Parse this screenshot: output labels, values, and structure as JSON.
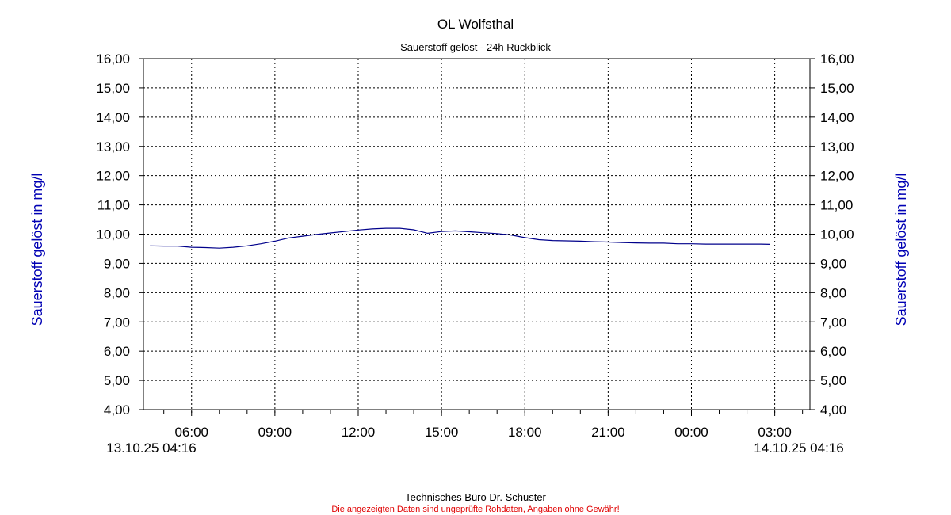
{
  "chart_data": {
    "type": "line",
    "title": "OL Wolfsthal",
    "subtitle": "Sauerstoff gelöst - 24h Rückblick",
    "ylabel_left": "Sauerstoff gelöst in mg/l",
    "ylabel_right": "Sauerstoff gelöst in mg/l",
    "ylim": [
      4,
      16
    ],
    "yticks": [
      "4,00",
      "5,00",
      "6,00",
      "7,00",
      "8,00",
      "9,00",
      "10,00",
      "11,00",
      "12,00",
      "13,00",
      "14,00",
      "15,00",
      "16,00"
    ],
    "xlim": [
      "13.10.25 04:16",
      "14.10.25 04:16"
    ],
    "x_start_label": "13.10.25 04:16",
    "x_end_label": "14.10.25 04:16",
    "xticks": [
      "06:00",
      "09:00",
      "12:00",
      "15:00",
      "18:00",
      "21:00",
      "00:00",
      "03:00"
    ],
    "grid": true,
    "line_color": "#00008b",
    "series": [
      {
        "x": [
          "13.10.25 04:30",
          "13.10.25 05:00",
          "13.10.25 05:30",
          "13.10.25 06:00",
          "13.10.25 06:30",
          "13.10.25 07:00",
          "13.10.25 07:30",
          "13.10.25 08:00",
          "13.10.25 08:30",
          "13.10.25 09:00",
          "13.10.25 09:30",
          "13.10.25 10:00",
          "13.10.25 10:30",
          "13.10.25 11:00",
          "13.10.25 11:30",
          "13.10.25 12:00",
          "13.10.25 12:30",
          "13.10.25 13:00",
          "13.10.25 13:30",
          "13.10.25 14:00",
          "13.10.25 14:30",
          "13.10.25 15:00",
          "13.10.25 15:30",
          "13.10.25 16:00",
          "13.10.25 16:30",
          "13.10.25 17:00",
          "13.10.25 17:30",
          "13.10.25 18:00",
          "13.10.25 18:30",
          "13.10.25 19:00",
          "13.10.25 19:30",
          "13.10.25 20:00",
          "13.10.25 20:30",
          "13.10.25 21:00",
          "13.10.25 21:30",
          "13.10.25 22:00",
          "13.10.25 22:30",
          "13.10.25 23:00",
          "13.10.25 23:30",
          "14.10.25 00:00",
          "14.10.25 00:30",
          "14.10.25 01:00",
          "14.10.25 01:30",
          "14.10.25 02:00",
          "14.10.25 02:30",
          "14.10.25 02:50"
        ],
        "values": [
          9.6,
          9.59,
          9.59,
          9.55,
          9.54,
          9.52,
          9.55,
          9.6,
          9.67,
          9.76,
          9.87,
          9.93,
          9.99,
          10.04,
          10.09,
          10.14,
          10.18,
          10.2,
          10.2,
          10.15,
          10.03,
          10.09,
          10.11,
          10.08,
          10.05,
          10.02,
          9.97,
          9.88,
          9.81,
          9.78,
          9.77,
          9.76,
          9.74,
          9.73,
          9.71,
          9.7,
          9.69,
          9.69,
          9.67,
          9.67,
          9.66,
          9.66,
          9.66,
          9.66,
          9.66,
          9.65
        ]
      }
    ]
  },
  "footer": {
    "credit": "Technisches Büro Dr. Schuster",
    "disclaimer": "Die angezeigten Daten sind ungeprüfte Rohdaten, Angaben ohne Gewähr!"
  }
}
